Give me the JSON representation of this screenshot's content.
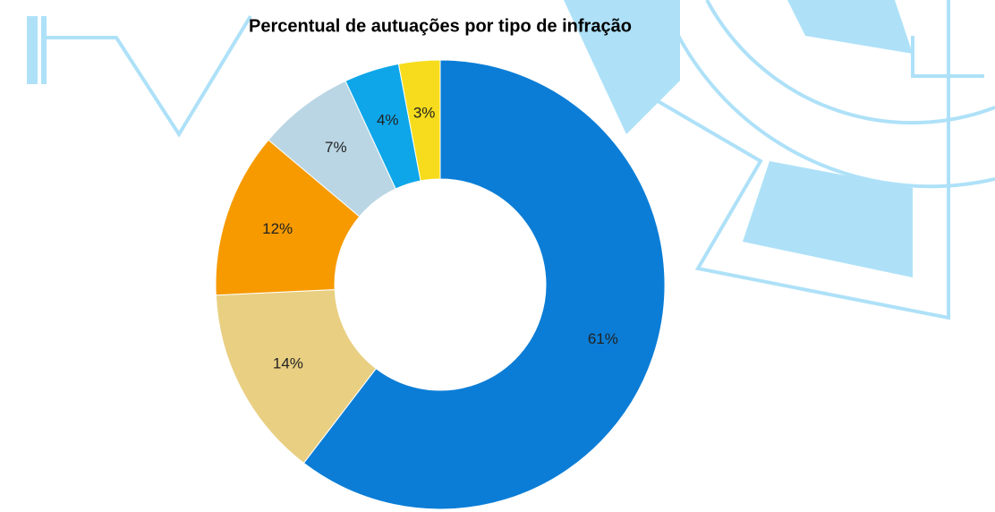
{
  "chart_data": {
    "type": "donut",
    "title": "Percentual de autuações por tipo de infração",
    "values": [
      61,
      14,
      12,
      7,
      4,
      3
    ],
    "value_labels": [
      "61%",
      "14%",
      "12%",
      "7%",
      "4%",
      "3%"
    ],
    "colors": [
      "#0b7dd6",
      "#e9cf82",
      "#f69a00",
      "#bad6e4",
      "#0ea6e9",
      "#f6dc1c"
    ]
  }
}
